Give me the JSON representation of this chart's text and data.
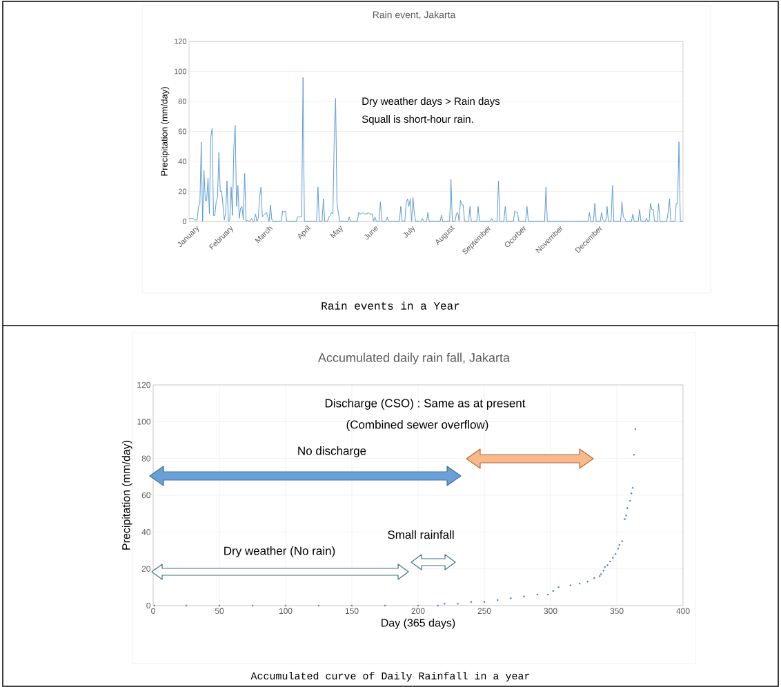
{
  "chart_data": [
    {
      "type": "line",
      "title": "Rain event, Jakarta",
      "ylabel": "Precipitation (mm/day)",
      "ylim": [
        0,
        120
      ],
      "yticks": [
        0,
        20,
        40,
        60,
        80,
        100,
        120
      ],
      "categories": [
        null,
        null,
        null,
        null,
        null,
        "January",
        null,
        null,
        null,
        null,
        null,
        null,
        null,
        null,
        null,
        null,
        null,
        null,
        null,
        null,
        null,
        null,
        null,
        null,
        null,
        null,
        null,
        null,
        null,
        null,
        "February",
        null,
        null,
        null,
        null,
        null,
        null,
        null,
        null,
        null,
        null,
        null,
        null,
        null,
        null,
        null,
        null,
        null,
        null,
        null,
        null,
        null,
        null,
        null,
        null,
        null,
        null,
        null,
        null,
        "March",
        null,
        null,
        null,
        null,
        null,
        null,
        null,
        null,
        null,
        null,
        null,
        null,
        null,
        null,
        null,
        null,
        null,
        null,
        null,
        null,
        null,
        null,
        null,
        null,
        null,
        null,
        null,
        "April",
        null,
        null,
        null,
        null,
        null,
        null,
        null,
        null,
        null,
        null,
        null,
        null,
        null,
        null,
        null,
        null,
        null,
        null,
        null,
        null,
        null,
        null,
        null,
        "May",
        null,
        null,
        null,
        null,
        null,
        null,
        null,
        null,
        null,
        null,
        null,
        null,
        null,
        null,
        null,
        null,
        null,
        null,
        null,
        null,
        null,
        null,
        null,
        null,
        null,
        "June",
        null,
        null,
        null,
        null,
        null,
        null,
        null,
        null,
        null,
        null,
        null,
        null,
        null,
        null,
        null,
        null,
        null,
        null,
        null,
        null,
        null,
        null,
        null,
        null,
        null,
        null,
        "July",
        null,
        null,
        null,
        null,
        null,
        null,
        null,
        null,
        null,
        null,
        null,
        null,
        null,
        null,
        null,
        null,
        null,
        null,
        null,
        null,
        null,
        null,
        null,
        null,
        null,
        null,
        null,
        null,
        "August",
        null,
        null,
        null,
        null,
        null,
        null,
        null,
        null,
        null,
        null,
        null,
        null,
        null,
        null,
        null,
        null,
        null,
        null,
        null,
        null,
        null,
        null,
        null,
        null,
        null,
        null,
        "September",
        null,
        null,
        null,
        null,
        null,
        null,
        null,
        null,
        null,
        null,
        null,
        null,
        null,
        null,
        null,
        null,
        null,
        null,
        null,
        null,
        null,
        null,
        null,
        null,
        null,
        "Ocorber",
        null,
        null,
        null,
        null,
        null,
        null,
        null,
        null,
        null,
        null,
        null,
        null,
        null,
        null,
        null,
        null,
        null,
        null,
        null,
        null,
        null,
        null,
        null,
        null,
        null,
        null,
        "November",
        null,
        null,
        null,
        null,
        null,
        null,
        null,
        null,
        null,
        null,
        null,
        null,
        null,
        null,
        null,
        null,
        null,
        null,
        null,
        null,
        null,
        null,
        null,
        null,
        null,
        null,
        null,
        null,
        "December",
        null,
        null,
        null,
        null,
        null,
        null,
        null,
        null,
        null,
        null,
        null,
        null,
        null,
        null,
        null,
        null,
        null,
        null,
        null,
        null,
        null,
        null,
        null,
        null,
        null,
        null,
        null,
        null,
        null,
        null,
        null,
        null,
        null,
        null,
        null,
        null,
        null,
        null,
        null,
        null,
        null,
        null,
        null,
        null,
        null,
        null,
        null,
        null,
        null,
        null,
        null,
        null,
        null,
        null,
        null,
        null,
        null,
        null,
        null,
        null,
        null,
        null
      ],
      "grid": "y",
      "annotations": [
        "Dry weather days > Rain days",
        "Squall is short-hour rain.",
        "Rain events in a Year"
      ],
      "series": [
        {
          "color": "#5b9bd5",
          "values": [
            2,
            2,
            2,
            2,
            1,
            1,
            1,
            10,
            12,
            53,
            0,
            34,
            14,
            14,
            29,
            5,
            56,
            62,
            4,
            4,
            13,
            16,
            46,
            20,
            20,
            11,
            1,
            6,
            27,
            0,
            1,
            23,
            4,
            49,
            64,
            10,
            24,
            2,
            9,
            10,
            1,
            32,
            0,
            1,
            0,
            0,
            2,
            0,
            0,
            5,
            0,
            2,
            16,
            23,
            3,
            4,
            5,
            6,
            3,
            0,
            11,
            1,
            0,
            0,
            0,
            0,
            0,
            0,
            0,
            7,
            6,
            7,
            0,
            0,
            0,
            0,
            0,
            0,
            0,
            0,
            3,
            3,
            3,
            3,
            96,
            0,
            0,
            0,
            0,
            0,
            0,
            0,
            0,
            0,
            0,
            23,
            0,
            0,
            0,
            15,
            0,
            0,
            0,
            3,
            4,
            6,
            5,
            56,
            82,
            12,
            6,
            0,
            0,
            0,
            0,
            0,
            0,
            0,
            3,
            0,
            0,
            0,
            0,
            0,
            0,
            6,
            5,
            5,
            6,
            5,
            5,
            5,
            6,
            5,
            5,
            5,
            0,
            3,
            0,
            0,
            0,
            13,
            0,
            0,
            0,
            0,
            3,
            0,
            0,
            0,
            0,
            0,
            0,
            0,
            0,
            0,
            10,
            0,
            0,
            0,
            12,
            15,
            10,
            15,
            0,
            16,
            5,
            0,
            0,
            0,
            0,
            0,
            2,
            0,
            0,
            0,
            6,
            0,
            0,
            0,
            0,
            0,
            0,
            0,
            0,
            0,
            4,
            0,
            0,
            0,
            0,
            0,
            0,
            28,
            0,
            0,
            0,
            5,
            6,
            0,
            14,
            11,
            11,
            0,
            0,
            0,
            0,
            10,
            0,
            0,
            0,
            0,
            0,
            10,
            0,
            0,
            0,
            0,
            0,
            0,
            0,
            0,
            0,
            2,
            0,
            0,
            0,
            0,
            27,
            0,
            0,
            0,
            0,
            10,
            0,
            0,
            0,
            0,
            0,
            0,
            7,
            6,
            6,
            0,
            0,
            0,
            0,
            0,
            0,
            10,
            0,
            0,
            0,
            0,
            0,
            0,
            0,
            0,
            0,
            0,
            0,
            0,
            0,
            23,
            0,
            0,
            0,
            0,
            0,
            0,
            0,
            0,
            0,
            0,
            0,
            0,
            0,
            0,
            0,
            0,
            0,
            0,
            0,
            0,
            0,
            0,
            0,
            0,
            0,
            0,
            0,
            0,
            0,
            0,
            0,
            6,
            0,
            0,
            0,
            12,
            0,
            0,
            0,
            0,
            6,
            1,
            0,
            0,
            10,
            0,
            0,
            0,
            24,
            0,
            0,
            0,
            0,
            0,
            0,
            13,
            3,
            2,
            0,
            0,
            0,
            0,
            0,
            5,
            0,
            0,
            0,
            0,
            8,
            0,
            0,
            0,
            0,
            2,
            0,
            0,
            12,
            8,
            8,
            0,
            0,
            0,
            12,
            0,
            0,
            0,
            0,
            0,
            0,
            6,
            15,
            0,
            0,
            0,
            0,
            12,
            12,
            53,
            0,
            0,
            0
          ]
        }
      ]
    },
    {
      "type": "scatter",
      "title": "Accumulated daily rain fall, Jakarta",
      "xlabel": "Day (365 days)",
      "ylabel": "Precipitation (mm/day)",
      "xlim": [
        0,
        400
      ],
      "ylim": [
        0,
        120
      ],
      "xticks": [
        0,
        50,
        100,
        150,
        200,
        250,
        300,
        350,
        400
      ],
      "yticks": [
        0,
        20,
        40,
        60,
        80,
        100,
        120
      ],
      "grid": true,
      "marker": "circle",
      "annotations": [
        "Discharge (CSO) : Same as at present",
        "(Combined sewer overflow)",
        "No discharge",
        "Dry weather (No rain)",
        "Small rainfall",
        "Accumulated curve of Daily Rainfall in a year"
      ],
      "series": [
        {
          "color": "#4f81bd",
          "x": [
            1,
            25,
            50,
            75,
            100,
            125,
            150,
            175,
            200,
            215,
            220,
            230,
            240,
            250,
            260,
            270,
            280,
            290,
            298,
            302,
            306,
            315,
            322,
            328,
            333,
            337,
            338,
            340,
            341,
            343,
            345,
            347,
            349,
            351,
            352,
            354,
            356,
            357,
            358,
            360,
            361,
            362,
            363,
            364
          ],
          "values": [
            0,
            0,
            0,
            0,
            0,
            0,
            0,
            0,
            0,
            0,
            1,
            1,
            2,
            2,
            3,
            4,
            5,
            6,
            6,
            8,
            10,
            11,
            12,
            13,
            15,
            16,
            17,
            19,
            21,
            22,
            24,
            26,
            28,
            31,
            33,
            35,
            47,
            49,
            53,
            57,
            61,
            64,
            82,
            96
          ]
        }
      ]
    }
  ]
}
